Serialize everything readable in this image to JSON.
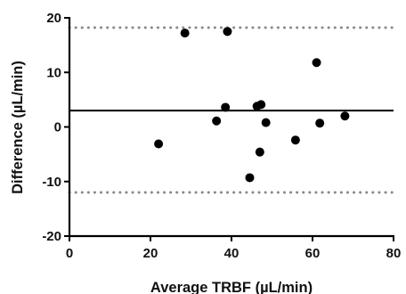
{
  "chart_data": {
    "type": "scatter",
    "title": "",
    "xlabel": "Average TRBF (µL/min)",
    "ylabel": "Difference (µL/min)",
    "xlim": [
      0,
      80
    ],
    "ylim": [
      -20,
      20
    ],
    "x_ticks": [
      0,
      20,
      40,
      60,
      80
    ],
    "y_ticks": [
      -20,
      -10,
      0,
      10,
      20
    ],
    "x_tick_labels": [
      "0",
      "20",
      "40",
      "60",
      "80"
    ],
    "y_tick_labels": [
      "-20",
      "-10",
      "0",
      "10",
      "20"
    ],
    "grid": false,
    "points": [
      {
        "x": 22,
        "y": -3.1
      },
      {
        "x": 28.5,
        "y": 17.2
      },
      {
        "x": 36.3,
        "y": 1.1
      },
      {
        "x": 38.5,
        "y": 3.6
      },
      {
        "x": 39,
        "y": 17.5
      },
      {
        "x": 44.5,
        "y": -9.3
      },
      {
        "x": 46.3,
        "y": 3.8
      },
      {
        "x": 47,
        "y": -4.6
      },
      {
        "x": 47.3,
        "y": 4.1
      },
      {
        "x": 48.5,
        "y": 0.8
      },
      {
        "x": 55.8,
        "y": -2.4
      },
      {
        "x": 61,
        "y": 11.8
      },
      {
        "x": 61.8,
        "y": 0.7
      },
      {
        "x": 68,
        "y": 2.0
      }
    ],
    "reference_lines": [
      {
        "kind": "mean",
        "y": 3.0,
        "style": "solid",
        "color": "#000000"
      },
      {
        "kind": "upper-limit",
        "y": 18.2,
        "style": "dotted",
        "color": "#8a8a8a"
      },
      {
        "kind": "lower-limit",
        "y": -12.0,
        "style": "dotted",
        "color": "#8a8a8a"
      }
    ],
    "colors": {
      "points": "#000000",
      "axis": "#000000"
    }
  }
}
